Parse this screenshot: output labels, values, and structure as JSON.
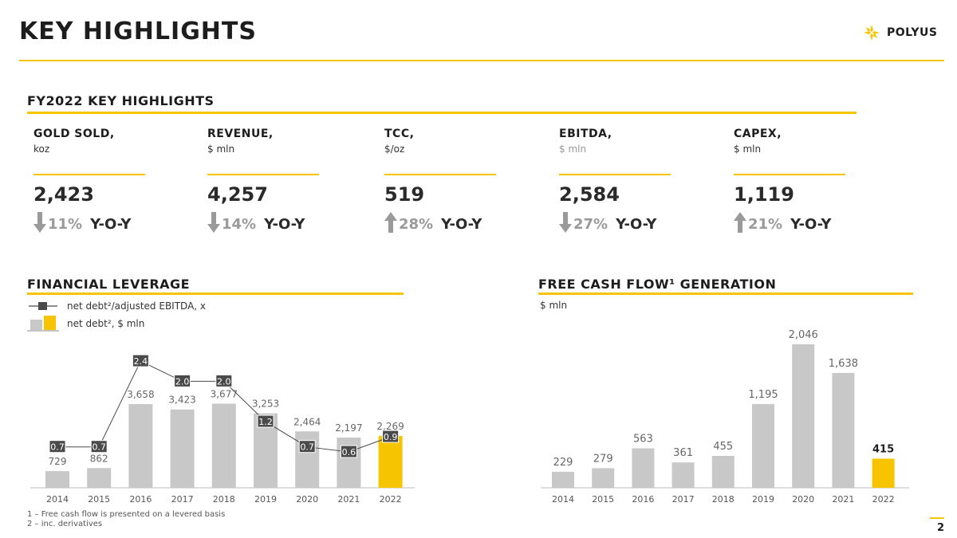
{
  "header": {
    "title": "KEY HIGHLIGHTS",
    "logo_text": "POLYUS"
  },
  "kpis_section": {
    "title": "FY2022 KEY HIGHLIGHTS",
    "items": [
      {
        "label": "GOLD SOLD,",
        "unit": "koz",
        "value": "2,423",
        "direction": "down",
        "change": "11%",
        "yoy": "Y-O-Y"
      },
      {
        "label": "REVENUE,",
        "unit": "$ mln",
        "value": "4,257",
        "direction": "down",
        "change": "14%",
        "yoy": "Y-O-Y"
      },
      {
        "label": "TCC,",
        "unit": "$/oz",
        "value": "519",
        "direction": "up",
        "change": "28%",
        "yoy": "Y-O-Y"
      },
      {
        "label": "EBITDA,",
        "unit": "$ mln",
        "value": "2,584",
        "direction": "down",
        "change": "27%",
        "yoy": "Y-O-Y"
      },
      {
        "label": "CAPEX,",
        "unit": "$ mln",
        "value": "1,119",
        "direction": "up",
        "change": "21%",
        "yoy": "Y-O-Y"
      }
    ]
  },
  "leverage": {
    "title": "FINANCIAL LEVERAGE",
    "legend_line": "net debt²/adjusted EBITDA, x",
    "legend_bar": "net debt², $ mln"
  },
  "fcf": {
    "title": "FREE CASH FLOW¹ GENERATION",
    "unit": "$ mln"
  },
  "footnotes": {
    "note1": "1 – Free cash flow is presented on a levered basis",
    "note2": "2 – inc. derivatives"
  },
  "page_number": "2",
  "colors": {
    "accent": "#f6c400",
    "bar_grey": "#c8c8c8",
    "line_dark": "#4a4a4a"
  },
  "chart_data": [
    {
      "type": "bar",
      "categories": [
        "2014",
        "2015",
        "2016",
        "2017",
        "2018",
        "2019",
        "2020",
        "2021",
        "2022"
      ],
      "series": [
        {
          "name": "net debt², $ mln",
          "type": "bar",
          "values": [
            729,
            862,
            3658,
            3423,
            3677,
            3253,
            2464,
            2197,
            2269
          ],
          "labels": [
            "729",
            "862",
            "3,658",
            "3,423",
            "3,677",
            "3,253",
            "2,464",
            "2,197",
            "2,269"
          ]
        },
        {
          "name": "net debt²/adjusted EBITDA, x",
          "type": "line",
          "values": [
            0.7,
            0.7,
            2.4,
            2.0,
            2.0,
            1.2,
            0.7,
            0.6,
            0.9
          ],
          "labels": [
            "0.7",
            "0.7",
            "2.4",
            "2.0",
            "2.0",
            "1.2",
            "0.7",
            "0.6",
            "0.9"
          ]
        }
      ],
      "highlight_last": true,
      "ylim": [
        0,
        4000
      ]
    },
    {
      "type": "bar",
      "categories": [
        "2014",
        "2015",
        "2016",
        "2017",
        "2018",
        "2019",
        "2020",
        "2021",
        "2022"
      ],
      "values": [
        229,
        279,
        563,
        361,
        455,
        1195,
        2046,
        1638,
        415
      ],
      "labels": [
        "229",
        "279",
        "563",
        "361",
        "455",
        "1,195",
        "2,046",
        "1,638",
        "415"
      ],
      "highlight_last": true,
      "ylim": [
        0,
        2046
      ]
    }
  ]
}
